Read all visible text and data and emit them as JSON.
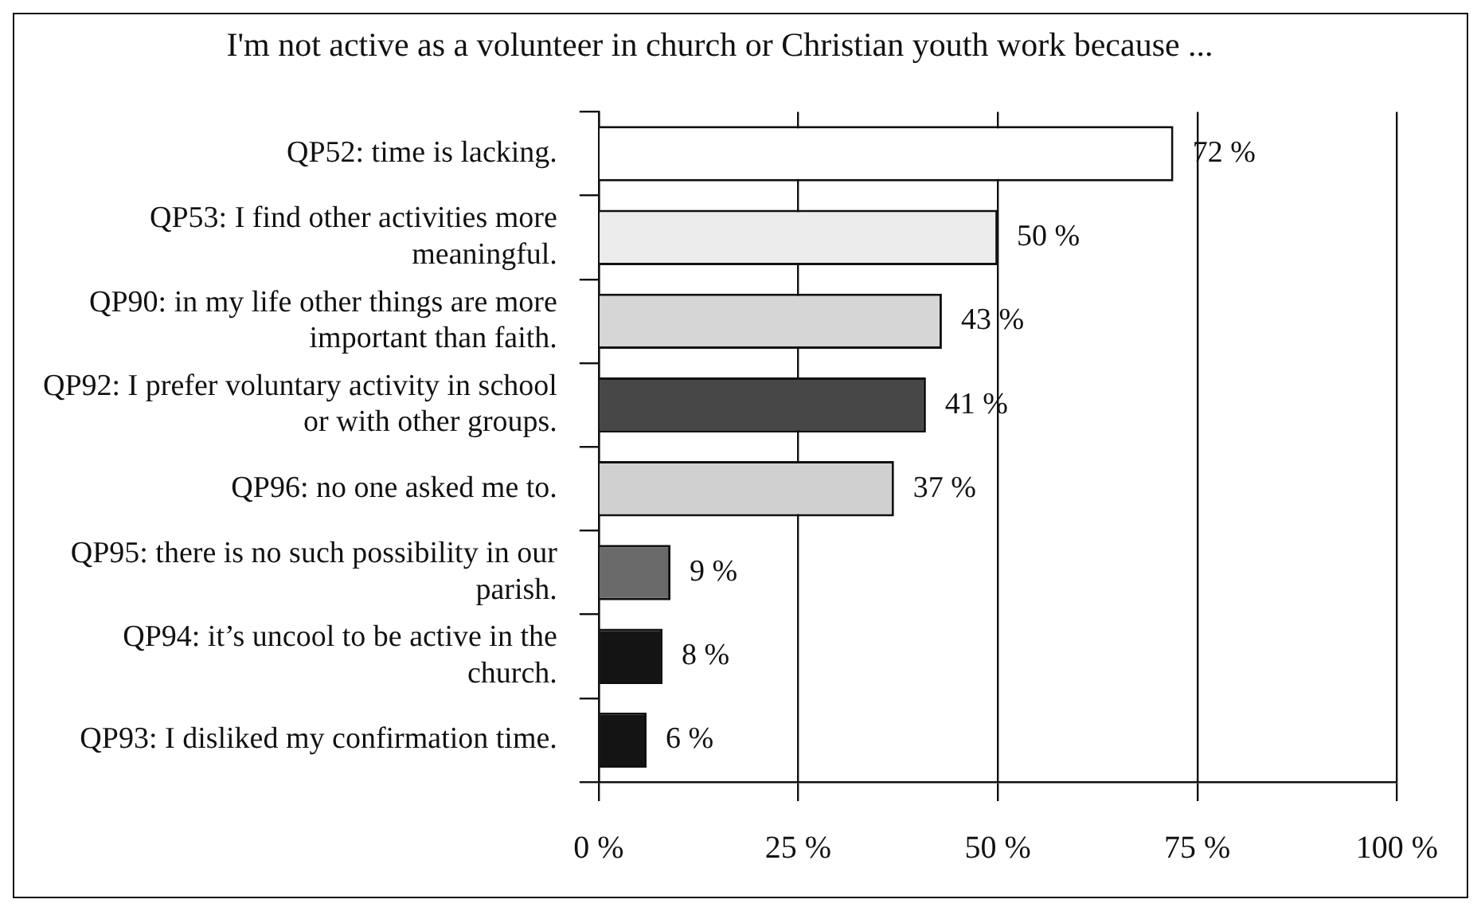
{
  "chart_data": {
    "type": "bar",
    "orientation": "horizontal",
    "title": "I'm not active as a volunteer in church or Christian youth work because ...",
    "categories": [
      "QP52: time is lacking.",
      "QP53: I find other activities more meaningful.",
      "QP90: in my life other things are more important than faith.",
      "QP92: I prefer voluntary activity in school or with other groups.",
      "QP96: no one asked me to.",
      "QP95: there is no such possibility in our parish.",
      "QP94: it’s uncool to be active in the church.",
      "QP93: I disliked my confirmation time."
    ],
    "values": [
      72,
      50,
      43,
      41,
      37,
      9,
      8,
      6
    ],
    "colors": [
      "#ffffff",
      "#ececec",
      "#d6d6d6",
      "#474747",
      "#d0d0d0",
      "#6a6a6a",
      "#141414",
      "#141414"
    ],
    "value_labels": [
      "72 %",
      "50 %",
      "43 %",
      "41 %",
      "37 %",
      "9 %",
      "8 %",
      "6 %"
    ],
    "xlim": [
      0,
      100
    ],
    "xticks": [
      {
        "value": 0,
        "label": "0 %"
      },
      {
        "value": 25,
        "label": "25 %"
      },
      {
        "value": 50,
        "label": "50 %"
      },
      {
        "value": 75,
        "label": "75 %"
      },
      {
        "value": 100,
        "label": "100 %"
      }
    ],
    "grid": "x",
    "legend": false
  }
}
